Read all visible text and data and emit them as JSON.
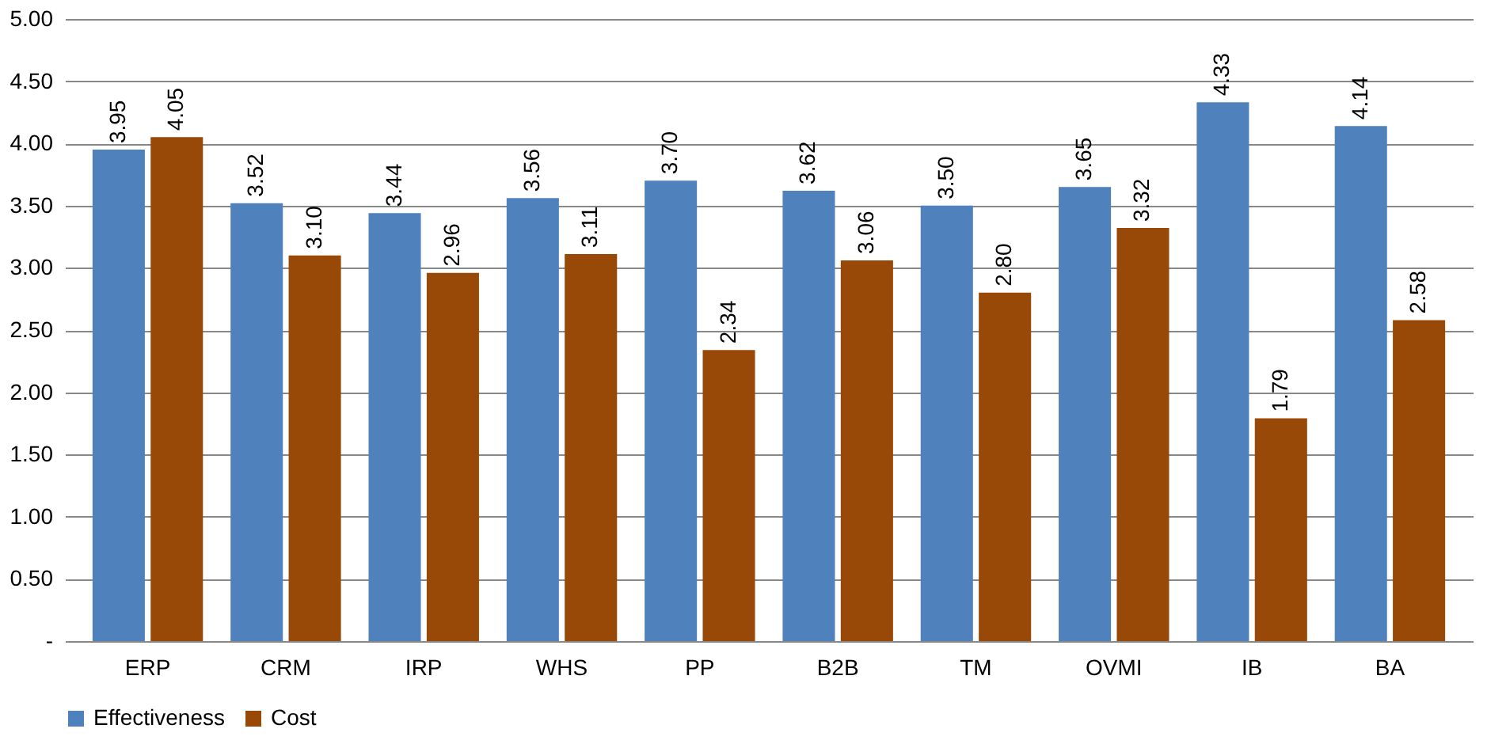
{
  "chart_data": {
    "type": "bar",
    "categories": [
      "ERP",
      "CRM",
      "IRP",
      "WHS",
      "PP",
      "B2B",
      "TM",
      "OVMI",
      "IB",
      "BA"
    ],
    "series": [
      {
        "name": "Effectiveness",
        "color": "#4f81bd",
        "values": [
          3.95,
          3.52,
          3.44,
          3.56,
          3.7,
          3.62,
          3.5,
          3.65,
          4.33,
          4.14
        ],
        "value_labels": [
          "3.95",
          "3.52",
          "3.44",
          "3.56",
          "3.70",
          "3.62",
          "3.50",
          "3.65",
          "4.33",
          "4.14"
        ]
      },
      {
        "name": "Cost",
        "color": "#984807",
        "values": [
          4.05,
          3.1,
          2.96,
          3.11,
          2.34,
          3.06,
          2.8,
          3.32,
          1.79,
          2.58
        ],
        "value_labels": [
          "4.05",
          "3.10",
          "2.96",
          "3.11",
          "2.34",
          "3.06",
          "2.80",
          "3.32",
          "1.79",
          "2.58"
        ]
      }
    ],
    "ylim": [
      0,
      5
    ],
    "yticks": [
      {
        "value": 0,
        "label": "-"
      },
      {
        "value": 0.5,
        "label": "0.50"
      },
      {
        "value": 1,
        "label": "1.00"
      },
      {
        "value": 1.5,
        "label": "1.50"
      },
      {
        "value": 2,
        "label": "2.00"
      },
      {
        "value": 2.5,
        "label": "2.50"
      },
      {
        "value": 3,
        "label": "3.00"
      },
      {
        "value": 3.5,
        "label": "3.50"
      },
      {
        "value": 4,
        "label": "4.00"
      },
      {
        "value": 4.5,
        "label": "4.50"
      },
      {
        "value": 5,
        "label": "5.00"
      }
    ],
    "grid": "y",
    "legend": "bottom"
  }
}
